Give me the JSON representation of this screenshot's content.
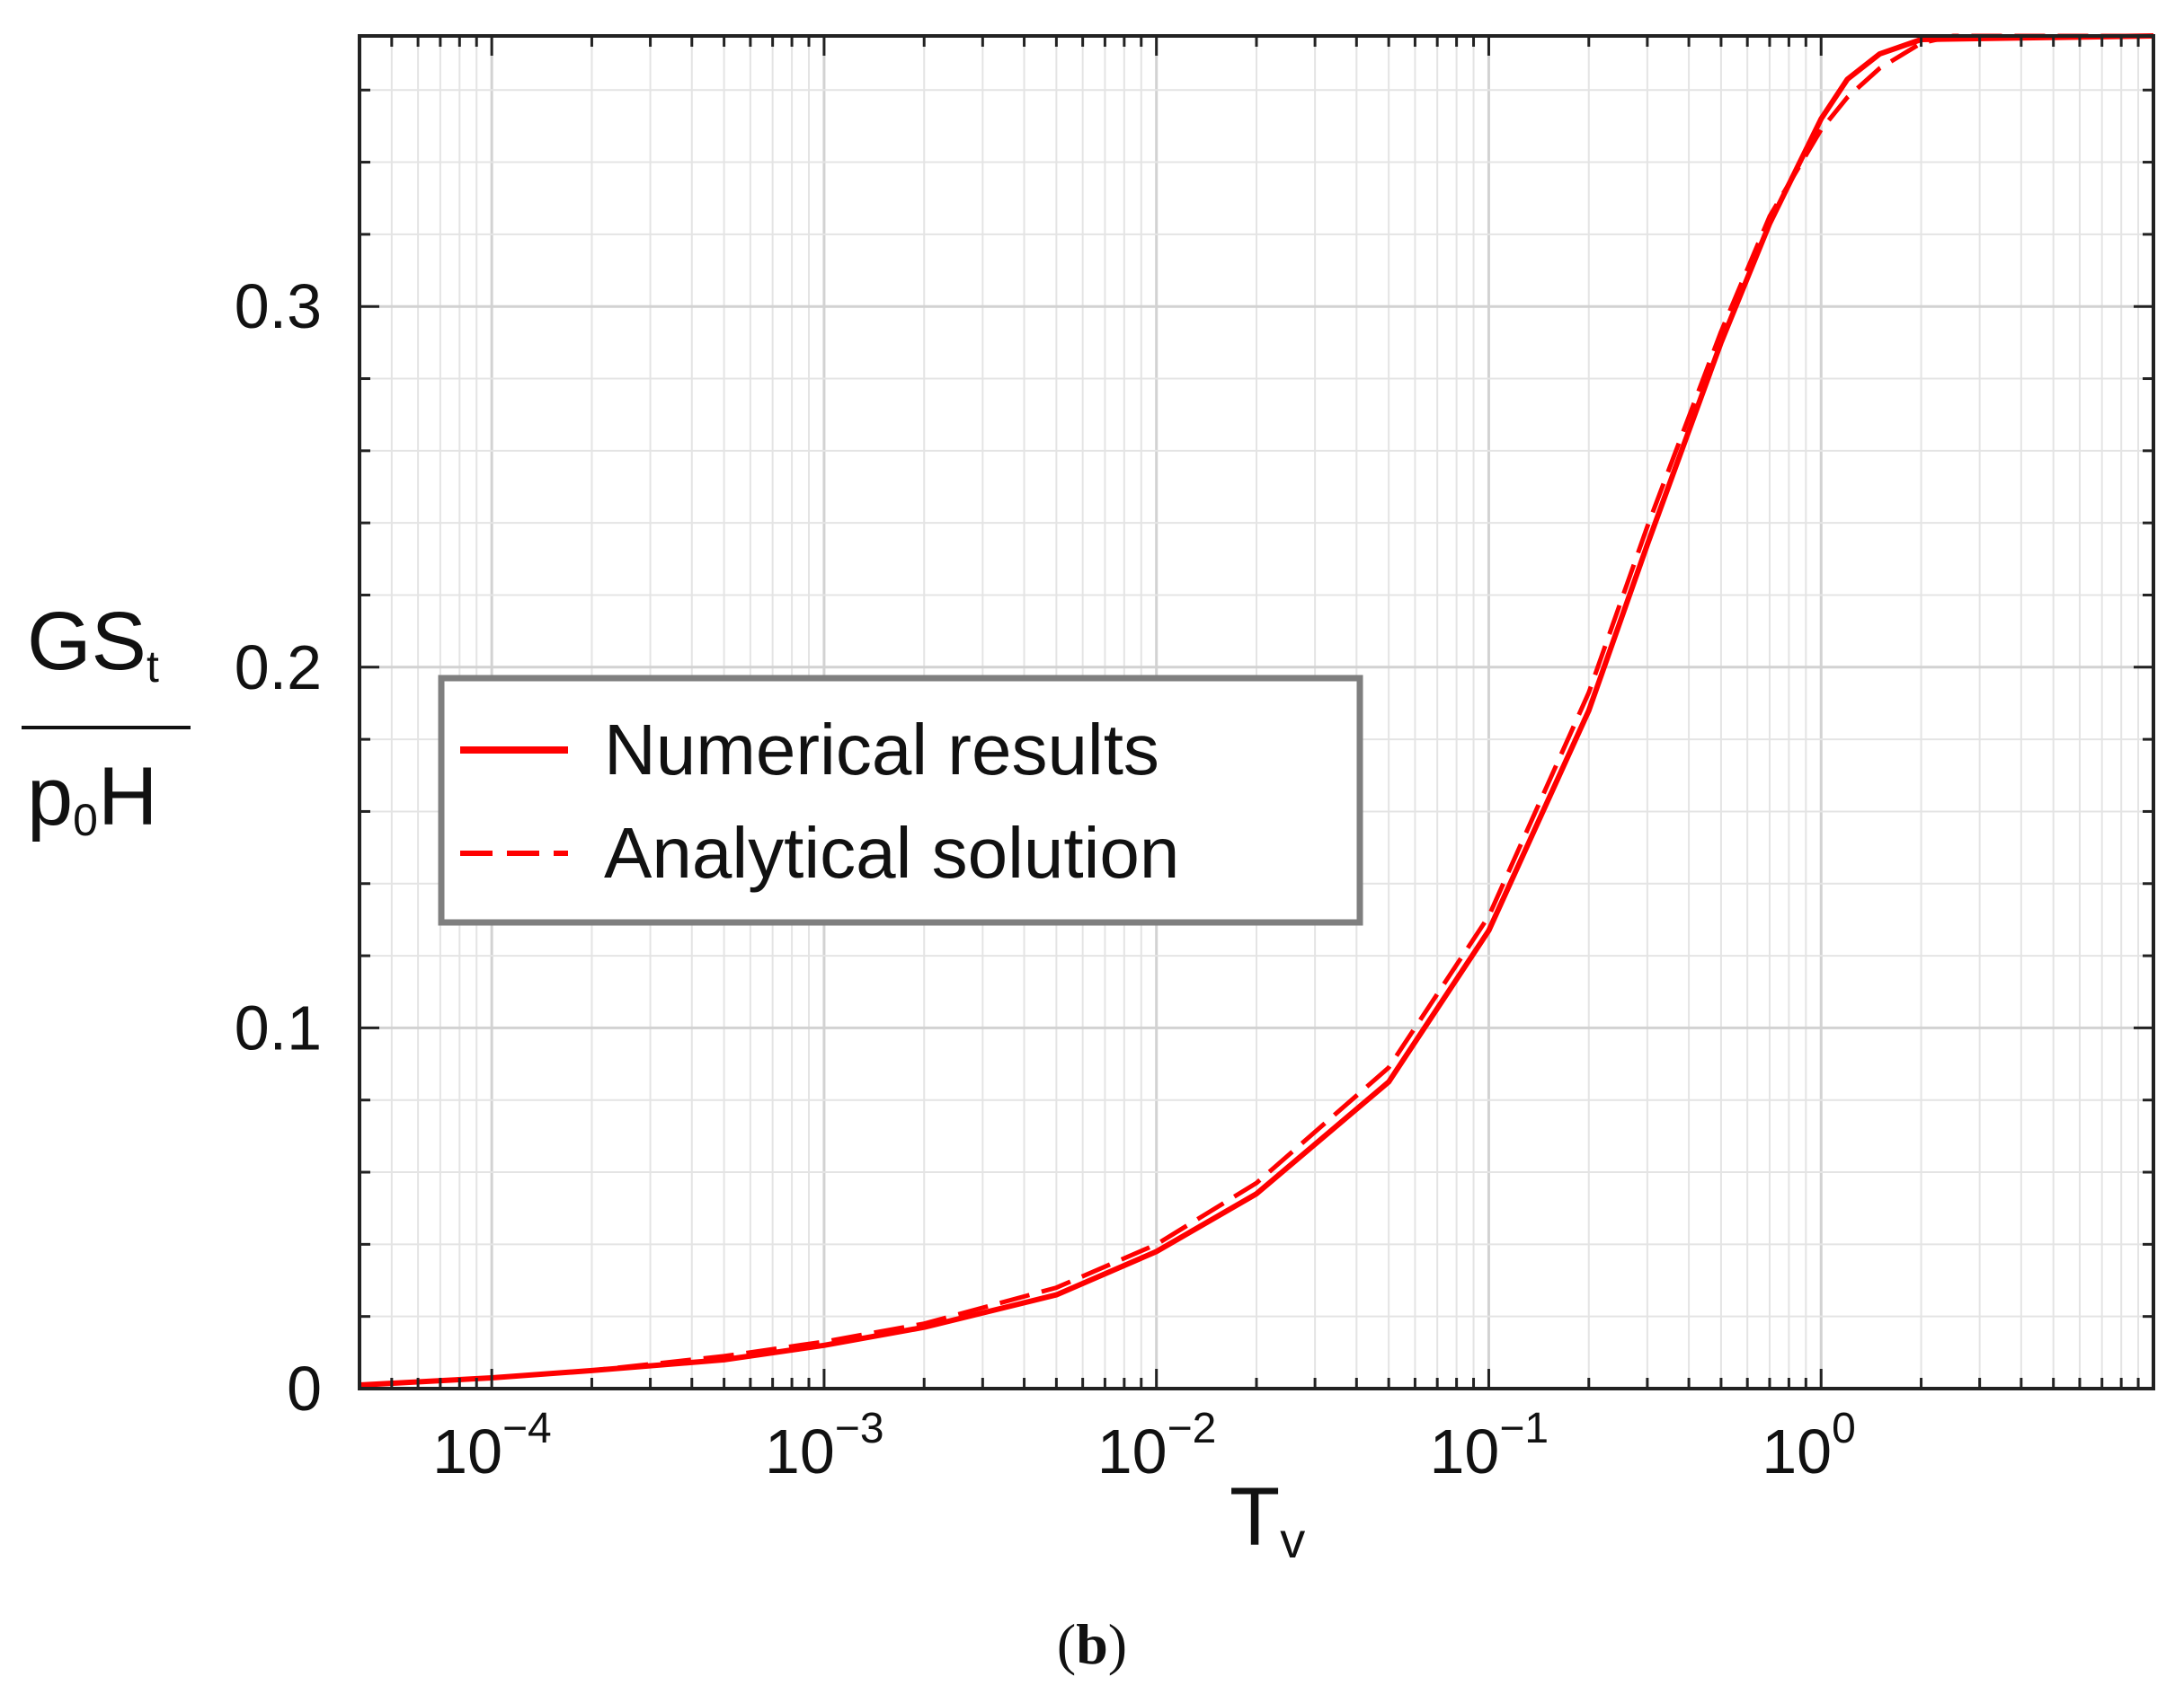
{
  "chart_data": {
    "type": "line",
    "x_scale": "log",
    "xlim": [
      4e-05,
      10
    ],
    "ylim": [
      0,
      0.375
    ],
    "x_ticks": [
      {
        "value": 0.0001,
        "base": "10",
        "exp": "−4"
      },
      {
        "value": 0.001,
        "base": "10",
        "exp": "−3"
      },
      {
        "value": 0.01,
        "base": "10",
        "exp": "−2"
      },
      {
        "value": 0.1,
        "base": "10",
        "exp": "−1"
      },
      {
        "value": 1,
        "base": "10",
        "exp": "0"
      }
    ],
    "y_ticks": [
      {
        "value": 0,
        "label": "0"
      },
      {
        "value": 0.1,
        "label": "0.1"
      },
      {
        "value": 0.2,
        "label": "0.2"
      },
      {
        "value": 0.3,
        "label": "0.3"
      }
    ],
    "xlabel": {
      "main": "T",
      "sub": "v"
    },
    "ylabel": {
      "num_main": "GS",
      "num_sub": "t",
      "den_pre": "p",
      "den_sub": "0",
      "den_post": "H"
    },
    "grid": true,
    "legend": {
      "position": "center-left"
    },
    "series": [
      {
        "name": "Numerical results",
        "style": "solid",
        "color": "#ff0000",
        "points": [
          [
            4e-05,
            0.001
          ],
          [
            0.0001,
            0.003
          ],
          [
            0.0002,
            0.005
          ],
          [
            0.0005,
            0.008
          ],
          [
            0.001,
            0.012
          ],
          [
            0.002,
            0.017
          ],
          [
            0.005,
            0.026
          ],
          [
            0.01,
            0.038
          ],
          [
            0.02,
            0.054
          ],
          [
            0.05,
            0.085
          ],
          [
            0.1,
            0.127
          ],
          [
            0.2,
            0.188
          ],
          [
            0.3,
            0.234
          ],
          [
            0.5,
            0.29
          ],
          [
            0.7,
            0.323
          ],
          [
            1.0,
            0.352
          ],
          [
            1.2,
            0.363
          ],
          [
            1.5,
            0.37
          ],
          [
            2.0,
            0.374
          ],
          [
            10,
            0.375
          ]
        ]
      },
      {
        "name": "Analytical solution",
        "style": "dashed",
        "color": "#ff0000",
        "points": [
          [
            4e-05,
            0.001
          ],
          [
            0.0001,
            0.003
          ],
          [
            0.0002,
            0.005
          ],
          [
            0.0005,
            0.009
          ],
          [
            0.001,
            0.013
          ],
          [
            0.002,
            0.018
          ],
          [
            0.005,
            0.028
          ],
          [
            0.01,
            0.04
          ],
          [
            0.02,
            0.057
          ],
          [
            0.05,
            0.089
          ],
          [
            0.1,
            0.131
          ],
          [
            0.2,
            0.193
          ],
          [
            0.3,
            0.239
          ],
          [
            0.5,
            0.293
          ],
          [
            0.7,
            0.325
          ],
          [
            1.0,
            0.349
          ],
          [
            1.2,
            0.358
          ],
          [
            1.5,
            0.366
          ],
          [
            2.0,
            0.373
          ],
          [
            2.5,
            0.375
          ],
          [
            10,
            0.375
          ]
        ]
      }
    ]
  },
  "caption": {
    "open": "(",
    "letter": "b",
    "close": ")"
  }
}
